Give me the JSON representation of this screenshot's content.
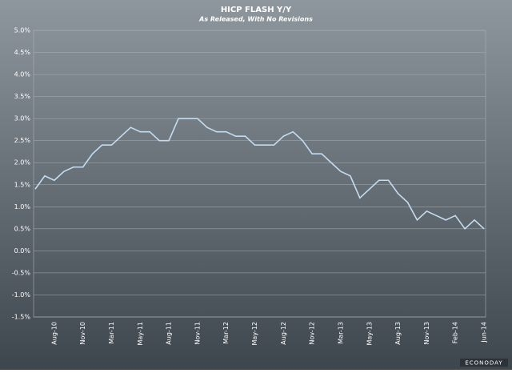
{
  "chart_data": {
    "type": "line",
    "title": "HICP FLASH Y/Y",
    "subtitle": "As Released, With No Revisions",
    "categories": [
      null,
      null,
      "Aug-10",
      null,
      null,
      "Nov-10",
      null,
      null,
      "Mar-11",
      null,
      null,
      "May-11",
      null,
      null,
      "Aug-11",
      null,
      null,
      "Nov-11",
      null,
      null,
      "Mar-12",
      null,
      null,
      "May-12",
      null,
      null,
      "Aug-12",
      null,
      null,
      "Nov-12",
      null,
      null,
      "Mar-13",
      null,
      null,
      "May-13",
      null,
      null,
      "Aug-13",
      null,
      null,
      "Nov-13",
      null,
      null,
      "Feb-14",
      null,
      null,
      "Jun-14"
    ],
    "series": [
      {
        "name": "HICP Flash Y/Y",
        "color": "#c5dcf0",
        "values": [
          1.4,
          1.7,
          1.6,
          1.8,
          1.9,
          1.9,
          2.2,
          2.4,
          2.4,
          2.6,
          2.8,
          2.7,
          2.7,
          2.5,
          2.5,
          3.0,
          3.0,
          3.0,
          2.8,
          2.7,
          2.7,
          2.6,
          2.6,
          2.4,
          2.4,
          2.4,
          2.6,
          2.7,
          2.5,
          2.2,
          2.2,
          2.0,
          1.8,
          1.7,
          1.2,
          1.4,
          1.6,
          1.6,
          1.3,
          1.1,
          0.7,
          0.9,
          0.8,
          0.7,
          0.8,
          0.5,
          0.7,
          0.5
        ]
      }
    ],
    "ylim": [
      -1.5,
      5.0
    ],
    "yticks": [
      {
        "value": -1.5,
        "label": "-1.5%"
      },
      {
        "value": -1.0,
        "label": "-1.0%"
      },
      {
        "value": -0.5,
        "label": "-0.5%"
      },
      {
        "value": 0.0,
        "label": "0.0%"
      },
      {
        "value": 0.5,
        "label": "0.5%"
      },
      {
        "value": 1.0,
        "label": "1.0%"
      },
      {
        "value": 1.5,
        "label": "1.5%"
      },
      {
        "value": 2.0,
        "label": "2.0%"
      },
      {
        "value": 2.5,
        "label": "2.5%"
      },
      {
        "value": 3.0,
        "label": "3.0%"
      },
      {
        "value": 3.5,
        "label": "3.5%"
      },
      {
        "value": 4.0,
        "label": "4.0%"
      },
      {
        "value": 4.5,
        "label": "4.5%"
      },
      {
        "value": 5.0,
        "label": "5.0%"
      }
    ],
    "grid": true,
    "logo": "ECONODAY"
  }
}
